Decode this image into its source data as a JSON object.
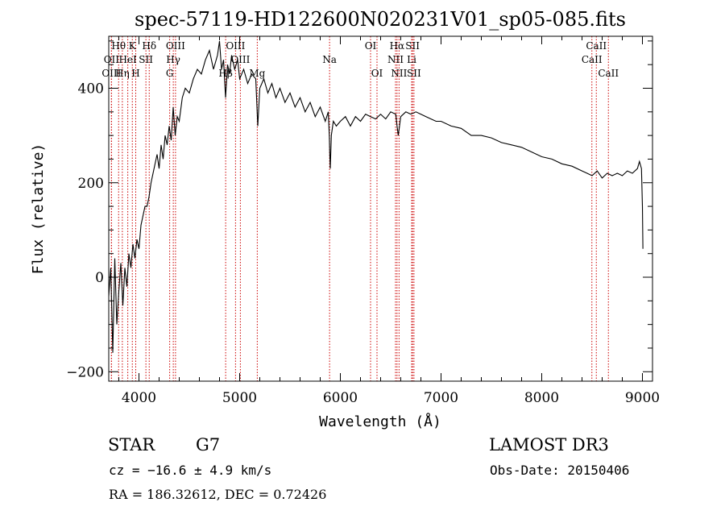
{
  "chart_data": {
    "type": "line",
    "title": "spec-57119-HD122600N020231V01_sp05-085.fits",
    "xlabel": "Wavelength (Å)",
    "ylabel": "Flux (relative)",
    "xlim": [
      3700,
      9100
    ],
    "ylim": [
      -220,
      510
    ],
    "xticks": [
      4000,
      5000,
      6000,
      7000,
      8000,
      9000
    ],
    "yticks": [
      -200,
      0,
      200,
      400
    ],
    "grid": false,
    "series": [
      {
        "color": "#000000",
        "x": [
          3700,
          3720,
          3740,
          3760,
          3780,
          3800,
          3820,
          3840,
          3860,
          3880,
          3900,
          3920,
          3940,
          3960,
          3980,
          4000,
          4020,
          4040,
          4060,
          4080,
          4100,
          4120,
          4140,
          4160,
          4180,
          4200,
          4220,
          4240,
          4260,
          4280,
          4300,
          4320,
          4340,
          4360,
          4380,
          4400,
          4430,
          4460,
          4500,
          4540,
          4580,
          4620,
          4660,
          4700,
          4740,
          4780,
          4800,
          4820,
          4840,
          4860,
          4880,
          4900,
          4920,
          4950,
          4980,
          5000,
          5040,
          5080,
          5120,
          5160,
          5180,
          5200,
          5240,
          5280,
          5320,
          5360,
          5400,
          5450,
          5500,
          5550,
          5600,
          5650,
          5700,
          5750,
          5800,
          5850,
          5880,
          5890,
          5895,
          5900,
          5910,
          5930,
          5960,
          6000,
          6050,
          6100,
          6150,
          6200,
          6250,
          6300,
          6350,
          6400,
          6450,
          6500,
          6550,
          6563,
          6575,
          6600,
          6650,
          6700,
          6750,
          6800,
          6850,
          6900,
          6950,
          7000,
          7100,
          7200,
          7300,
          7400,
          7500,
          7600,
          7700,
          7800,
          7900,
          8000,
          8100,
          8200,
          8300,
          8400,
          8450,
          8500,
          8550,
          8600,
          8650,
          8700,
          8750,
          8800,
          8850,
          8900,
          8950,
          8970,
          8990,
          9000,
          9005
        ],
        "y": [
          -40,
          20,
          -160,
          40,
          -100,
          -30,
          30,
          -60,
          20,
          -20,
          50,
          20,
          70,
          40,
          80,
          60,
          110,
          130,
          150,
          150,
          170,
          200,
          220,
          240,
          260,
          230,
          280,
          250,
          300,
          280,
          320,
          290,
          360,
          300,
          340,
          330,
          380,
          400,
          390,
          420,
          440,
          430,
          460,
          480,
          440,
          470,
          500,
          440,
          460,
          380,
          450,
          430,
          470,
          440,
          460,
          420,
          440,
          410,
          430,
          420,
          320,
          400,
          420,
          390,
          410,
          380,
          400,
          370,
          390,
          360,
          380,
          350,
          370,
          340,
          360,
          330,
          350,
          300,
          260,
          230,
          300,
          330,
          320,
          330,
          340,
          320,
          340,
          330,
          345,
          340,
          335,
          345,
          335,
          350,
          345,
          320,
          300,
          340,
          350,
          345,
          350,
          345,
          340,
          335,
          330,
          330,
          320,
          315,
          300,
          300,
          295,
          285,
          280,
          275,
          265,
          255,
          250,
          240,
          235,
          225,
          220,
          215,
          225,
          210,
          220,
          215,
          220,
          215,
          225,
          220,
          230,
          245,
          230,
          150,
          60
        ]
      }
    ],
    "spectral_lines": [
      {
        "name": "Hθ",
        "x": 3798,
        "row": 0
      },
      {
        "name": "OII",
        "x": 3727,
        "row": 1
      },
      {
        "name": "OIII",
        "x": 3727,
        "row": 2
      },
      {
        "name": "K",
        "x": 3934,
        "row": 0
      },
      {
        "name": "HeI",
        "x": 3889,
        "row": 1
      },
      {
        "name": "Hη",
        "x": 3835,
        "row": 2
      },
      {
        "name": "H",
        "x": 3968,
        "row": 2
      },
      {
        "name": "Hδ",
        "x": 4102,
        "row": 0
      },
      {
        "name": "SII",
        "x": 4069,
        "row": 1
      },
      {
        "name": "OIII",
        "x": 4363,
        "row": 0
      },
      {
        "name": "Hγ",
        "x": 4341,
        "row": 1
      },
      {
        "name": "G",
        "x": 4305,
        "row": 2
      },
      {
        "name": "Hβ",
        "x": 4861,
        "row": 2
      },
      {
        "name": "OIII",
        "x": 4959,
        "row": 0
      },
      {
        "name": "OIII",
        "x": 5007,
        "row": 1
      },
      {
        "name": "Mg",
        "x": 5175,
        "row": 2
      },
      {
        "name": "Na",
        "x": 5893,
        "row": 1
      },
      {
        "name": "OI",
        "x": 6300,
        "row": 0
      },
      {
        "name": "OI",
        "x": 6364,
        "row": 2
      },
      {
        "name": "Hα",
        "x": 6563,
        "row": 0
      },
      {
        "name": "NII",
        "x": 6548,
        "row": 1
      },
      {
        "name": "NII",
        "x": 6583,
        "row": 2
      },
      {
        "name": "SII",
        "x": 6717,
        "row": 0
      },
      {
        "name": "Li",
        "x": 6708,
        "row": 1
      },
      {
        "name": "SII",
        "x": 6731,
        "row": 2
      },
      {
        "name": "CaII",
        "x": 8542,
        "row": 0
      },
      {
        "name": "CaII",
        "x": 8498,
        "row": 1
      },
      {
        "name": "CaII",
        "x": 8662,
        "row": 2
      }
    ]
  },
  "footer": {
    "object_class": "STAR",
    "subclass": "G7",
    "survey": "LAMOST DR3",
    "cz": "cz = −16.6 ± 4.9 km/s",
    "obs_date": "Obs-Date: 20150406",
    "coords": "RA = 186.32612, DEC =   0.72426"
  },
  "colors": {
    "line_markers": "#cc0000",
    "spectrum": "#000000",
    "axes": "#000000"
  }
}
